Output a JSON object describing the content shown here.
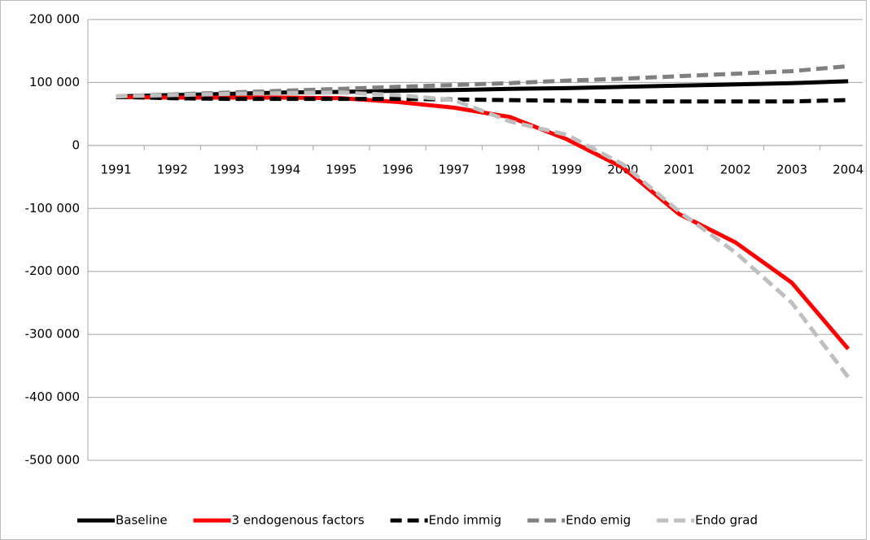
{
  "chart_data": {
    "type": "line",
    "categories": [
      "1991",
      "1992",
      "1993",
      "1994",
      "1995",
      "1996",
      "1997",
      "1998",
      "1999",
      "2000",
      "2001",
      "2002",
      "2003",
      "2004"
    ],
    "series": [
      {
        "name": "Baseline",
        "color": "#000000",
        "dash": "solid",
        "values": [
          78000,
          80000,
          82000,
          84000,
          85000,
          87000,
          88000,
          90000,
          91000,
          93000,
          95000,
          97000,
          99000,
          102000
        ]
      },
      {
        "name": "3 endogenous factors",
        "color": "#ff0000",
        "dash": "solid",
        "values": [
          77000,
          76000,
          76000,
          76000,
          75000,
          69000,
          60000,
          45000,
          10000,
          -35000,
          -109000,
          -154000,
          -218000,
          -323000
        ]
      },
      {
        "name": "Endo immig",
        "color": "#000000",
        "dash": "dashed",
        "values": [
          77000,
          75000,
          74000,
          74000,
          74000,
          74000,
          73000,
          72000,
          71000,
          70000,
          70000,
          70000,
          70000,
          72000
        ]
      },
      {
        "name": "Endo emig",
        "color": "#808080",
        "dash": "dashed",
        "values": [
          78000,
          81000,
          84000,
          87000,
          90000,
          93000,
          96000,
          99000,
          103000,
          106000,
          110000,
          114000,
          118000,
          126000
        ]
      },
      {
        "name": "Endo grad",
        "color": "#bfbfbf",
        "dash": "dashed",
        "values": [
          78000,
          80000,
          82000,
          83000,
          84000,
          80000,
          72000,
          38000,
          17000,
          -30000,
          -105000,
          -170000,
          -250000,
          -368000
        ]
      }
    ],
    "ylim": [
      -500000,
      200000
    ],
    "yticks": [
      {
        "value": -500000,
        "label": "-500 000"
      },
      {
        "value": -400000,
        "label": "-400 000"
      },
      {
        "value": -300000,
        "label": "-300 000"
      },
      {
        "value": -200000,
        "label": "-200 000"
      },
      {
        "value": -100000,
        "label": "-100 000"
      },
      {
        "value": 0,
        "label": "0"
      },
      {
        "value": 100000,
        "label": "100 000"
      },
      {
        "value": 200000,
        "label": "200 000"
      }
    ],
    "grid": true,
    "legend": "bottom"
  }
}
